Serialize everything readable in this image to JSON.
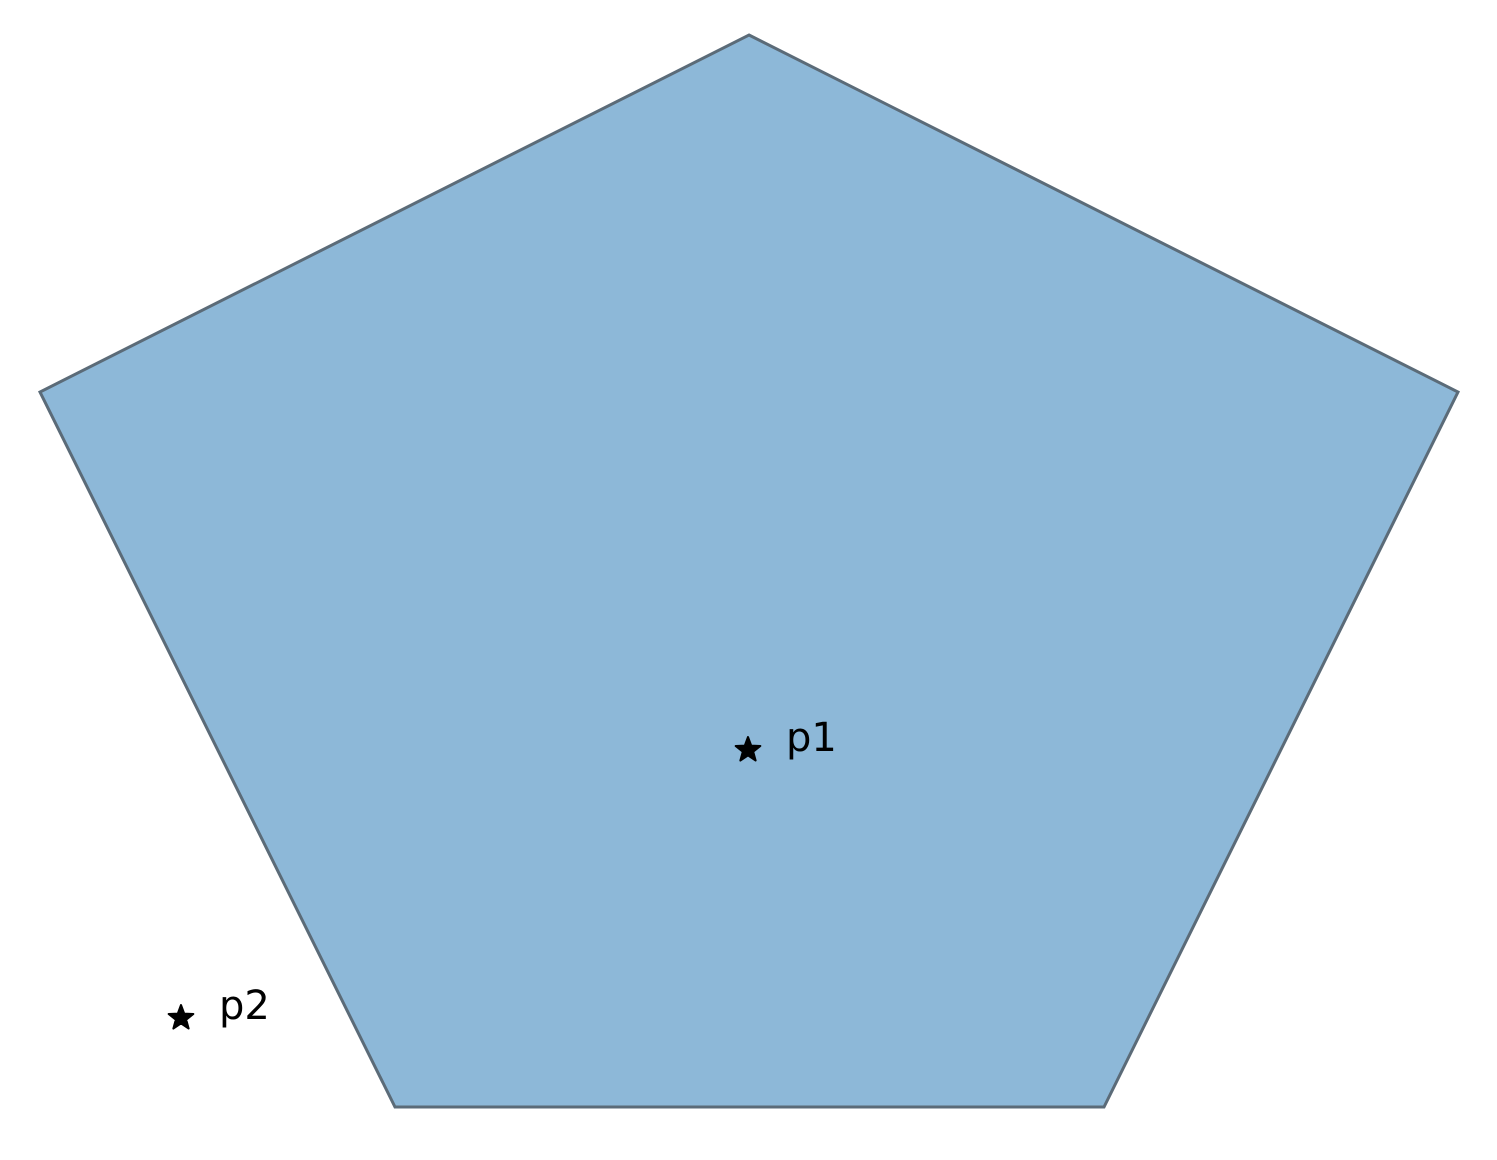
{
  "diagram": {
    "shape": "pentagon",
    "colors": {
      "fill": "#8db8d8",
      "stroke": "#5b6b78",
      "marker": "#000000"
    },
    "points": [
      {
        "label": "p1",
        "marker": "star",
        "inside_polygon": true
      },
      {
        "label": "p2",
        "marker": "star",
        "inside_polygon": false
      }
    ]
  }
}
